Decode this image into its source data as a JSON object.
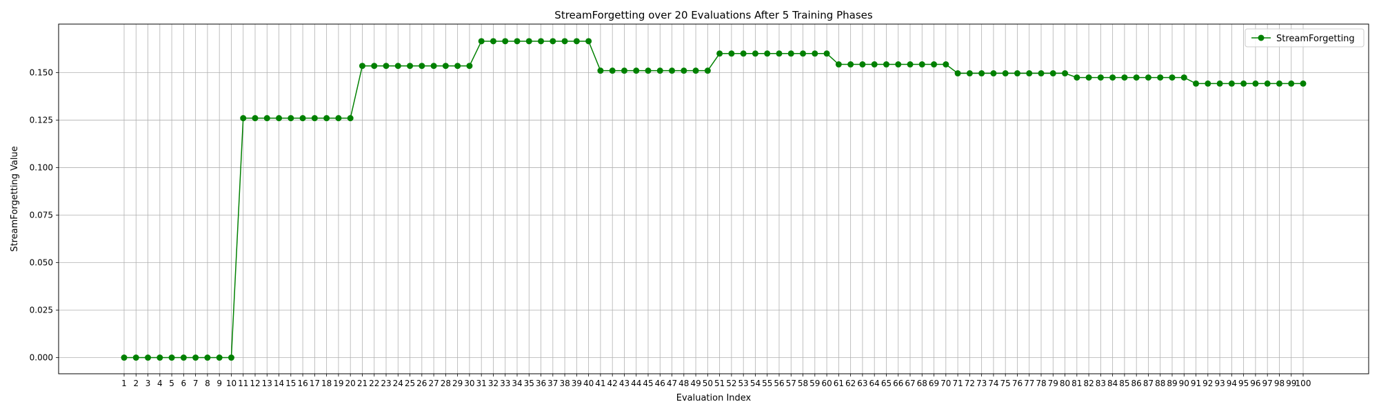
{
  "chart_data": {
    "type": "line",
    "title": "StreamForgetting over 20 Evaluations After 5 Training Phases",
    "xlabel": "Evaluation Index",
    "ylabel": "StreamForgetting Value",
    "x": [
      1,
      2,
      3,
      4,
      5,
      6,
      7,
      8,
      9,
      10,
      11,
      12,
      13,
      14,
      15,
      16,
      17,
      18,
      19,
      20,
      21,
      22,
      23,
      24,
      25,
      26,
      27,
      28,
      29,
      30,
      31,
      32,
      33,
      34,
      35,
      36,
      37,
      38,
      39,
      40,
      41,
      42,
      43,
      44,
      45,
      46,
      47,
      48,
      49,
      50,
      51,
      52,
      53,
      54,
      55,
      56,
      57,
      58,
      59,
      60,
      61,
      62,
      63,
      64,
      65,
      66,
      67,
      68,
      69,
      70,
      71,
      72,
      73,
      74,
      75,
      76,
      77,
      78,
      79,
      80,
      81,
      82,
      83,
      84,
      85,
      86,
      87,
      88,
      89,
      90,
      91,
      92,
      93,
      94,
      95,
      96,
      97,
      98,
      99,
      100
    ],
    "xlim": [
      -4.5,
      105.5
    ],
    "ylim": [
      -0.0085,
      0.1755
    ],
    "yticks": [
      0.0,
      0.025,
      0.05,
      0.075,
      0.1,
      0.125,
      0.15
    ],
    "ytick_labels": [
      "0.000",
      "0.025",
      "0.050",
      "0.075",
      "0.100",
      "0.125",
      "0.150"
    ],
    "grid": true,
    "legend_position": "top-right",
    "color": "#008000",
    "series": [
      {
        "name": "StreamForgetting",
        "values": [
          0,
          0,
          0,
          0,
          0,
          0,
          0,
          0,
          0,
          0,
          0.126,
          0.126,
          0.126,
          0.126,
          0.126,
          0.126,
          0.126,
          0.126,
          0.126,
          0.126,
          0.1535,
          0.1535,
          0.1535,
          0.1535,
          0.1535,
          0.1535,
          0.1535,
          0.1535,
          0.1535,
          0.1535,
          0.1665,
          0.1665,
          0.1665,
          0.1665,
          0.1665,
          0.1665,
          0.1665,
          0.1665,
          0.1665,
          0.1665,
          0.151,
          0.151,
          0.151,
          0.151,
          0.151,
          0.151,
          0.151,
          0.151,
          0.151,
          0.151,
          0.16,
          0.16,
          0.16,
          0.16,
          0.16,
          0.16,
          0.16,
          0.16,
          0.16,
          0.16,
          0.1543,
          0.1543,
          0.1543,
          0.1543,
          0.1543,
          0.1543,
          0.1543,
          0.1543,
          0.1543,
          0.1543,
          0.1496,
          0.1496,
          0.1496,
          0.1496,
          0.1496,
          0.1496,
          0.1496,
          0.1496,
          0.1496,
          0.1496,
          0.1474,
          0.1474,
          0.1474,
          0.1474,
          0.1474,
          0.1474,
          0.1474,
          0.1474,
          0.1474,
          0.1474,
          0.1442,
          0.1442,
          0.1442,
          0.1442,
          0.1442,
          0.1442,
          0.1442,
          0.1442,
          0.1442,
          0.1442
        ]
      }
    ]
  }
}
